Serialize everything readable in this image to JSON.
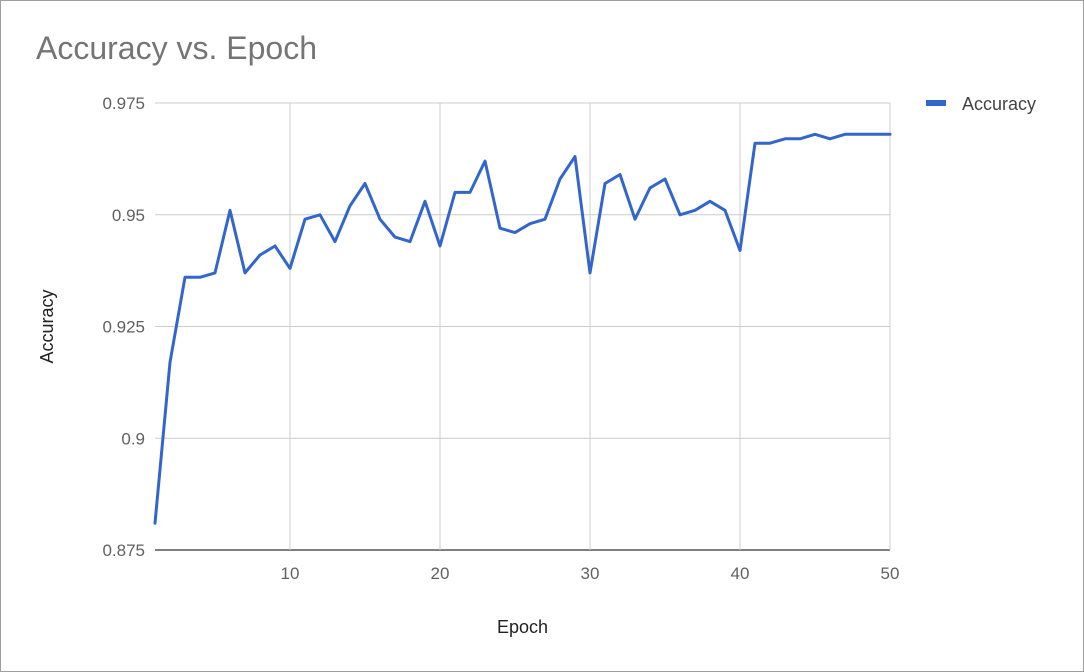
{
  "chart_data": {
    "type": "line",
    "title": "Accuracy vs. Epoch",
    "xlabel": "Epoch",
    "ylabel": "Accuracy",
    "xlim": [
      1,
      50
    ],
    "ylim": [
      0.875,
      0.975
    ],
    "x_ticks": [
      10,
      20,
      30,
      40,
      50
    ],
    "y_ticks": [
      0.875,
      0.9,
      0.925,
      0.95,
      0.975
    ],
    "y_tick_labels": [
      "0.875",
      "0.9",
      "0.925",
      "0.95",
      "0.975"
    ],
    "grid": true,
    "legend_position": "top-right",
    "series": [
      {
        "name": "Accuracy",
        "color": "#3366cc",
        "x": [
          1,
          2,
          3,
          4,
          5,
          6,
          7,
          8,
          9,
          10,
          11,
          12,
          13,
          14,
          15,
          16,
          17,
          18,
          19,
          20,
          21,
          22,
          23,
          24,
          25,
          26,
          27,
          28,
          29,
          30,
          31,
          32,
          33,
          34,
          35,
          36,
          37,
          38,
          39,
          40,
          41,
          42,
          43,
          44,
          45,
          46,
          47,
          48,
          49,
          50
        ],
        "y": [
          0.881,
          0.917,
          0.936,
          0.936,
          0.937,
          0.951,
          0.937,
          0.941,
          0.943,
          0.938,
          0.949,
          0.95,
          0.944,
          0.952,
          0.957,
          0.949,
          0.945,
          0.944,
          0.953,
          0.943,
          0.955,
          0.955,
          0.962,
          0.947,
          0.946,
          0.948,
          0.949,
          0.958,
          0.963,
          0.937,
          0.957,
          0.959,
          0.949,
          0.956,
          0.958,
          0.95,
          0.951,
          0.953,
          0.951,
          0.942,
          0.966,
          0.966,
          0.967,
          0.967,
          0.968,
          0.967,
          0.968,
          0.968,
          0.968,
          0.968
        ]
      }
    ]
  }
}
